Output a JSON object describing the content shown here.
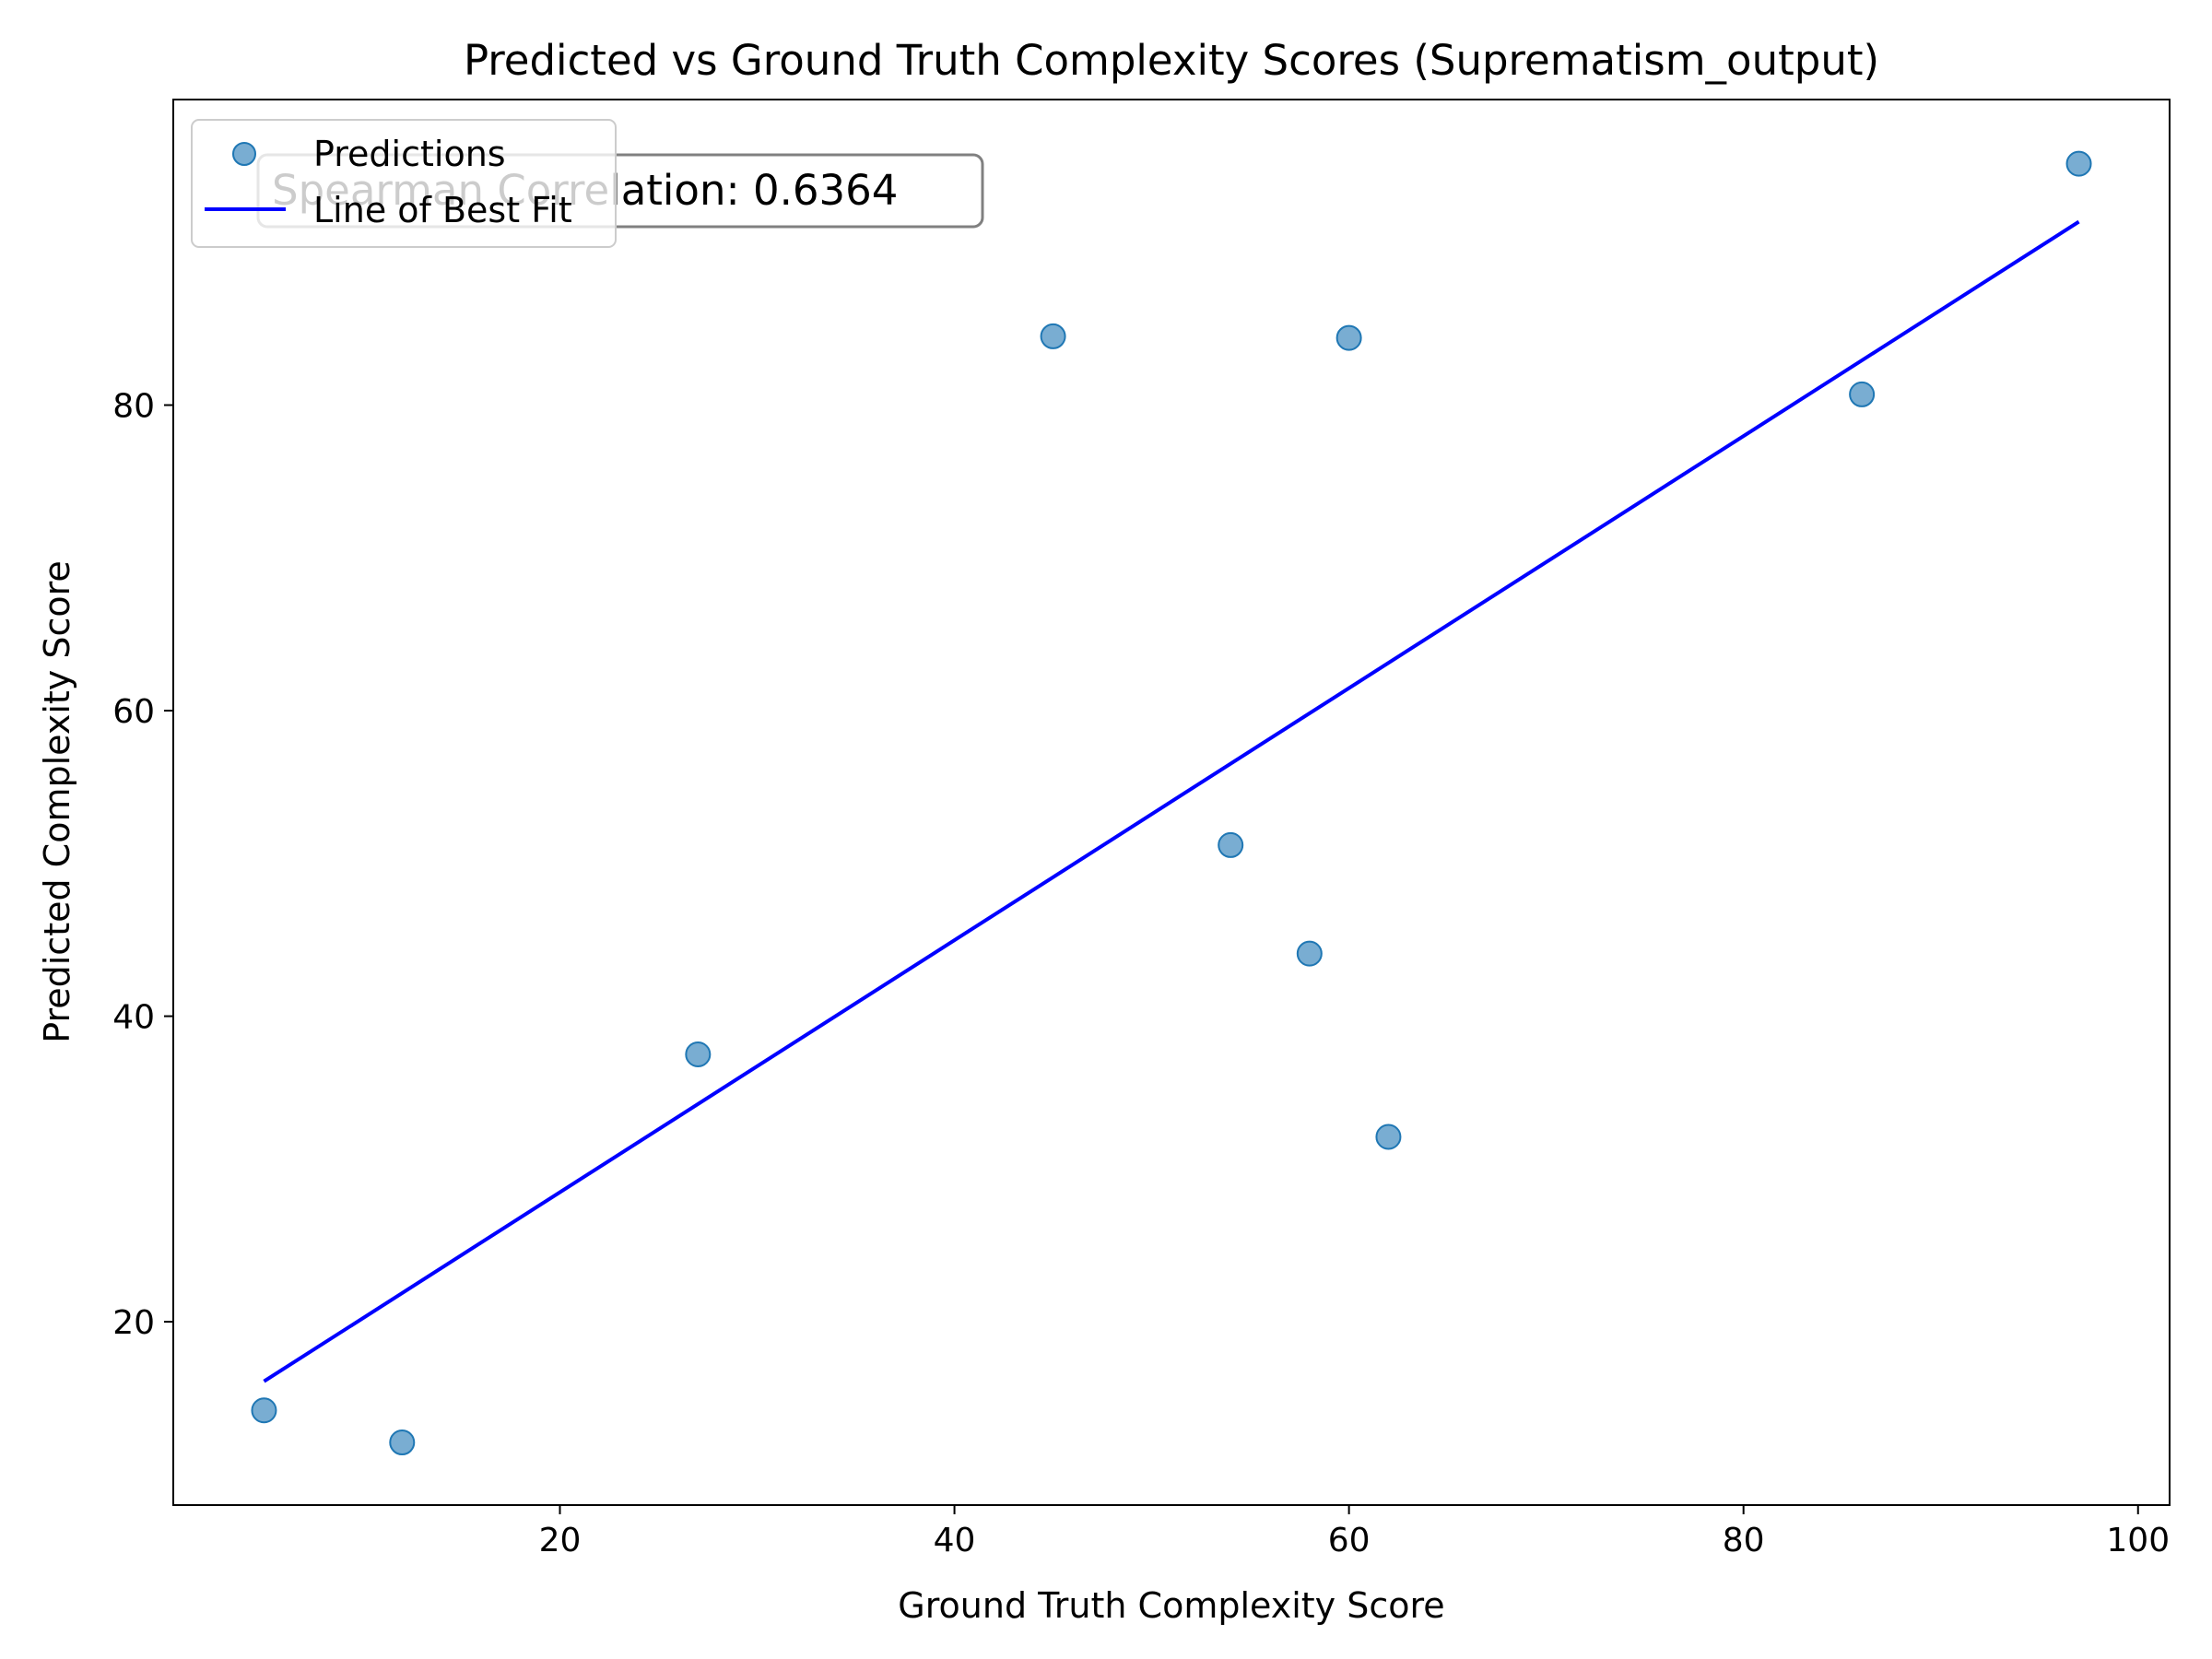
{
  "chart_data": {
    "type": "scatter",
    "title": "Predicted vs Ground Truth Complexity Scores (Suprematism_output)",
    "xlabel": "Ground Truth Complexity Score",
    "ylabel": "Predicted Complexity Score",
    "xlim": [
      0.4,
      101.6
    ],
    "ylim": [
      8.0,
      100.0
    ],
    "xticks": [
      20,
      40,
      60,
      80,
      100
    ],
    "yticks": [
      20,
      40,
      60,
      80
    ],
    "grid": false,
    "legend": {
      "position": "top-left",
      "entries": [
        "Predictions",
        "Line of Best Fit"
      ]
    },
    "series": [
      {
        "name": "Predictions",
        "kind": "scatter",
        "color": "#1f77b4",
        "x": [
          5,
          12,
          27,
          45,
          54,
          58,
          60,
          62,
          86,
          97
        ],
        "y": [
          14.2,
          12.1,
          37.5,
          84.5,
          51.2,
          44.1,
          84.4,
          32.1,
          80.7,
          95.8
        ]
      },
      {
        "name": "Line of Best Fit",
        "kind": "line",
        "color": "#0000ff",
        "x": [
          5,
          97
        ],
        "y": [
          16.1,
          92.0
        ]
      }
    ],
    "annotation": {
      "text": "Spearman Correlation: 0.6364",
      "position": "top-left"
    }
  }
}
